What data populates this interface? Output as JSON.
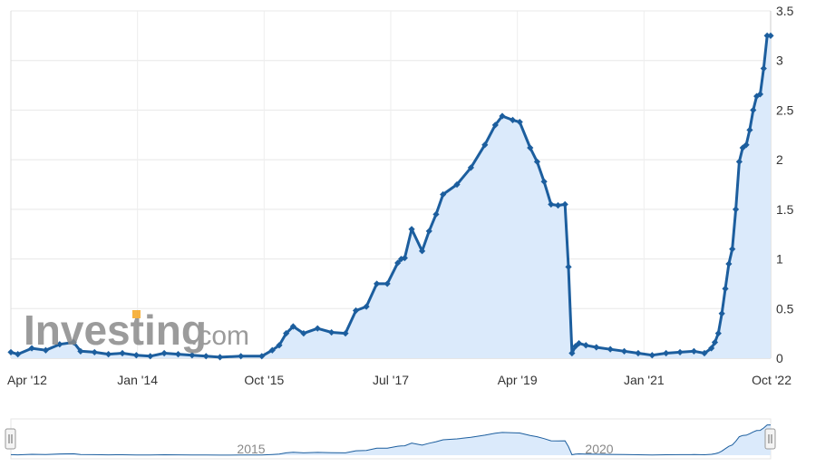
{
  "watermark": {
    "brand": "Investing",
    "suffix": ".com",
    "accent_color": "#f5a623"
  },
  "navigator": {
    "labels": [
      "2015",
      "2020"
    ]
  },
  "chart_data": {
    "type": "area",
    "title": "",
    "xlabel": "",
    "ylabel": "",
    "x_ticks": [
      "Apr '12",
      "Jan '14",
      "Oct '15",
      "Jul '17",
      "Apr '19",
      "Jan '21",
      "Oct '22"
    ],
    "y_ticks": [
      "0",
      "0.5",
      "1",
      "1.5",
      "2",
      "2.5",
      "3",
      "3.5"
    ],
    "ylim": [
      0,
      3.5
    ],
    "grid": true,
    "line_color": "#1c5e9e",
    "fill_color": "#dbeafb",
    "series": [
      {
        "x": [
          2012.0,
          2012.1,
          2012.3,
          2012.5,
          2012.7,
          2012.9,
          2013.0,
          2013.2,
          2013.4,
          2013.6,
          2013.8,
          2014.0,
          2014.2,
          2014.4,
          2014.6,
          2014.8,
          2015.0,
          2015.3,
          2015.6,
          2015.75,
          2015.85,
          2015.95,
          2016.05,
          2016.2,
          2016.4,
          2016.6,
          2016.8,
          2016.95,
          2017.1,
          2017.25,
          2017.4,
          2017.55,
          2017.6,
          2017.65,
          2017.75,
          2017.9,
          2018.0,
          2018.1,
          2018.2,
          2018.4,
          2018.6,
          2018.8,
          2018.95,
          2019.05,
          2019.2,
          2019.3,
          2019.45,
          2019.55,
          2019.65,
          2019.75,
          2019.85,
          2019.95,
          2020.0,
          2020.05,
          2020.1,
          2020.15,
          2020.25,
          2020.4,
          2020.6,
          2020.8,
          2021.0,
          2021.2,
          2021.4,
          2021.6,
          2021.8,
          2021.95,
          2022.05,
          2022.1,
          2022.15,
          2022.2,
          2022.25,
          2022.3,
          2022.35,
          2022.4,
          2022.45,
          2022.5,
          2022.55,
          2022.6,
          2022.65,
          2022.7,
          2022.75,
          2022.8,
          2022.85,
          2022.9
        ],
        "y": [
          0.06,
          0.04,
          0.1,
          0.08,
          0.14,
          0.16,
          0.07,
          0.06,
          0.04,
          0.05,
          0.03,
          0.02,
          0.05,
          0.04,
          0.03,
          0.02,
          0.01,
          0.02,
          0.02,
          0.08,
          0.13,
          0.25,
          0.32,
          0.25,
          0.3,
          0.26,
          0.25,
          0.48,
          0.52,
          0.75,
          0.75,
          0.96,
          1.0,
          1.01,
          1.3,
          1.08,
          1.28,
          1.45,
          1.65,
          1.75,
          1.92,
          2.15,
          2.35,
          2.44,
          2.4,
          2.38,
          2.12,
          1.98,
          1.78,
          1.55,
          1.54,
          1.55,
          0.92,
          0.05,
          0.12,
          0.15,
          0.13,
          0.11,
          0.09,
          0.07,
          0.05,
          0.03,
          0.05,
          0.06,
          0.07,
          0.05,
          0.1,
          0.16,
          0.25,
          0.45,
          0.7,
          0.95,
          1.1,
          1.5,
          1.98,
          2.12,
          2.15,
          2.3,
          2.5,
          2.64,
          2.66,
          2.92,
          3.25,
          3.25
        ]
      }
    ]
  }
}
